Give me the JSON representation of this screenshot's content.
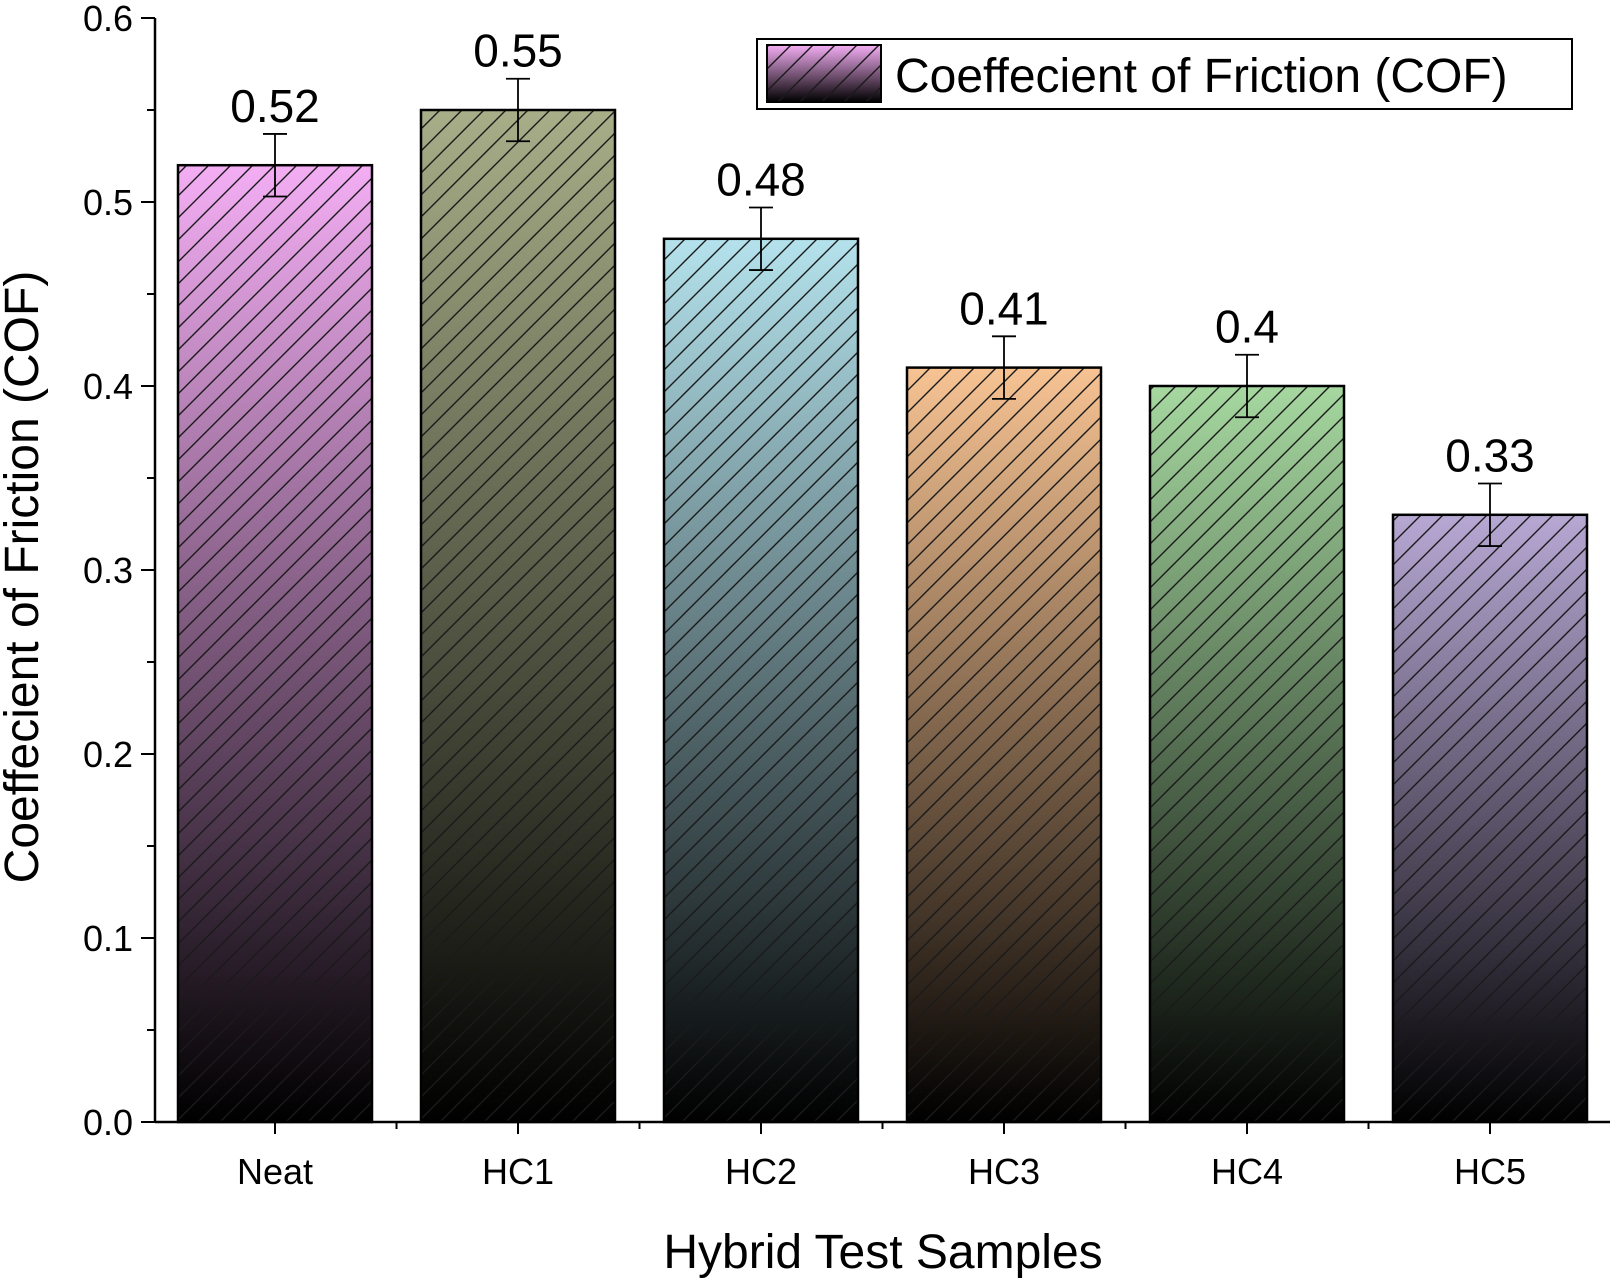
{
  "chart_data": {
    "type": "bar",
    "categories": [
      "Neat",
      "HC1",
      "HC2",
      "HC3",
      "HC4",
      "HC5"
    ],
    "series": [
      {
        "name": "Coeffecient of Friction (COF)",
        "values": [
          0.52,
          0.55,
          0.48,
          0.41,
          0.4,
          0.33
        ],
        "error": [
          0.017,
          0.017,
          0.017,
          0.017,
          0.017,
          0.017
        ]
      }
    ],
    "data_labels": [
      "0.52",
      "0.55",
      "0.48",
      "0.41",
      "0.4",
      "0.33"
    ],
    "colors": [
      "#f4aef4",
      "#a8ae88",
      "#b4e2ec",
      "#f7c393",
      "#a6d8a0",
      "#b7a8d4"
    ],
    "xlabel": "Hybrid Test Samples",
    "ylabel": "Coeffecient of Friction (COF)",
    "ylim": [
      0,
      0.6
    ],
    "yticks": [
      "0.0",
      "0.1",
      "0.2",
      "0.3",
      "0.4",
      "0.5",
      "0.6"
    ],
    "grid": false,
    "legend_position": "top-right",
    "bar_pattern": "diagonal hatch with vertical dark gradient"
  }
}
